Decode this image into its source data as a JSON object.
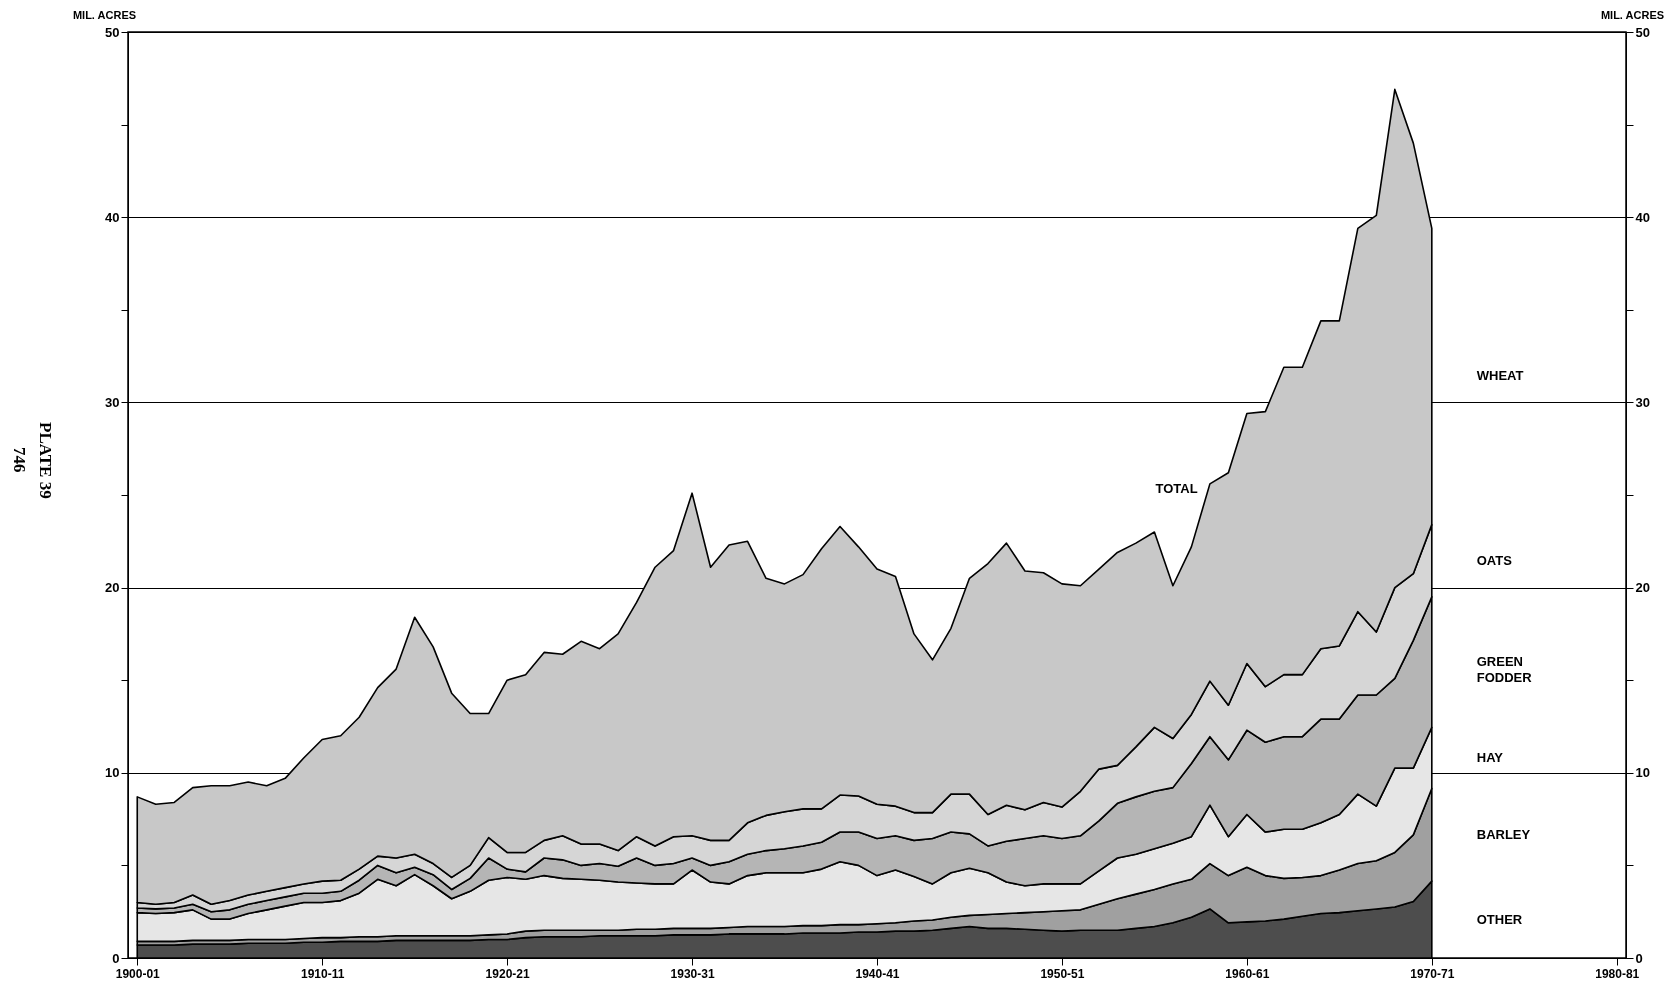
{
  "chart_data": {
    "type": "area",
    "stacked": true,
    "ylabel": "MIL. ACRES",
    "y2label": "MIL. ACRES",
    "annotations": [
      "TOTAL",
      "PLATE 39",
      "746"
    ],
    "categories": [
      "1900-01",
      null,
      null,
      null,
      null,
      null,
      null,
      null,
      null,
      null,
      "1910-11",
      null,
      null,
      null,
      null,
      null,
      null,
      null,
      null,
      null,
      "1920-21",
      null,
      null,
      null,
      null,
      null,
      null,
      null,
      null,
      null,
      "1930-31",
      null,
      null,
      null,
      null,
      null,
      null,
      null,
      null,
      null,
      "1940-41",
      null,
      null,
      null,
      null,
      null,
      null,
      null,
      null,
      null,
      "1950-51",
      null,
      null,
      null,
      null,
      null,
      null,
      null,
      null,
      null,
      "1960-61",
      null,
      null,
      null,
      null,
      null,
      null,
      null,
      null,
      null,
      "1970-71",
      null,
      null,
      null,
      null,
      null,
      null,
      null,
      null,
      null,
      "1980-81"
    ],
    "ylim": [
      0,
      50
    ],
    "yticks": [
      0,
      {
        "value": 5,
        "label": null
      },
      10,
      {
        "value": 15,
        "label": null
      },
      20,
      {
        "value": 25,
        "label": null
      },
      30,
      {
        "value": 35,
        "label": null
      },
      40,
      {
        "value": 45,
        "label": null
      },
      50
    ],
    "y2lim": [
      0,
      50
    ],
    "y2ticks": [
      0,
      {
        "value": 5,
        "label": null
      },
      10,
      {
        "value": 15,
        "label": null
      },
      20,
      {
        "value": 25,
        "label": null
      },
      30,
      {
        "value": 35,
        "label": null
      },
      40,
      {
        "value": 45,
        "label": null
      },
      50
    ],
    "grid": "y",
    "series": [
      {
        "name": "OTHER",
        "color": "#4d4d4d",
        "values": [
          0.7,
          0.7,
          0.7,
          0.75,
          0.75,
          0.75,
          0.8,
          0.8,
          0.8,
          0.85,
          0.85,
          0.9,
          0.9,
          0.9,
          0.95,
          0.95,
          0.95,
          0.95,
          0.95,
          1.0,
          1.0,
          1.1,
          1.15,
          1.15,
          1.15,
          1.2,
          1.2,
          1.2,
          1.2,
          1.25,
          1.25,
          1.25,
          1.3,
          1.3,
          1.3,
          1.3,
          1.35,
          1.35,
          1.35,
          1.4,
          1.4,
          1.45,
          1.45,
          1.5,
          1.6,
          1.7,
          1.6,
          1.6,
          1.55,
          1.5,
          1.45,
          1.5,
          1.5,
          1.5,
          1.6,
          1.7,
          1.9,
          2.2,
          2.65,
          1.9,
          1.95,
          2.0,
          2.1,
          2.25,
          2.4,
          2.45,
          2.55,
          2.65,
          2.75,
          3.05,
          4.15,
          null,
          null,
          null,
          null,
          null,
          null,
          null,
          null,
          null,
          null
        ]
      },
      {
        "name": "BARLEY",
        "color": "#a0a0a0",
        "values": [
          0.2,
          0.2,
          0.2,
          0.2,
          0.2,
          0.2,
          0.2,
          0.2,
          0.2,
          0.2,
          0.25,
          0.2,
          0.25,
          0.25,
          0.25,
          0.25,
          0.25,
          0.25,
          0.25,
          0.25,
          0.3,
          0.35,
          0.35,
          0.35,
          0.35,
          0.3,
          0.3,
          0.35,
          0.35,
          0.35,
          0.35,
          0.35,
          0.35,
          0.4,
          0.4,
          0.4,
          0.4,
          0.4,
          0.45,
          0.4,
          0.45,
          0.45,
          0.55,
          0.55,
          0.6,
          0.6,
          0.75,
          0.8,
          0.9,
          1.0,
          1.1,
          1.1,
          1.4,
          1.7,
          1.85,
          2.0,
          2.1,
          2.05,
          2.45,
          2.55,
          2.95,
          2.45,
          2.2,
          2.1,
          2.05,
          2.3,
          2.55,
          2.6,
          2.95,
          3.6,
          5.0,
          null,
          null,
          null,
          null,
          null,
          null,
          null,
          null,
          null,
          null
        ]
      },
      {
        "name": "HAY",
        "color": "#e6e6e6",
        "values": [
          1.55,
          1.5,
          1.55,
          1.65,
          1.15,
          1.15,
          1.4,
          1.6,
          1.8,
          1.95,
          1.9,
          2.0,
          2.35,
          3.1,
          2.7,
          3.3,
          2.7,
          2.0,
          2.4,
          2.95,
          3.05,
          2.8,
          2.95,
          2.8,
          2.75,
          2.7,
          2.6,
          2.5,
          2.45,
          2.4,
          3.15,
          2.5,
          2.35,
          2.75,
          2.9,
          2.9,
          2.85,
          3.05,
          3.4,
          3.2,
          2.6,
          2.85,
          2.4,
          1.95,
          2.4,
          2.55,
          2.25,
          1.7,
          1.45,
          1.5,
          1.45,
          1.4,
          1.8,
          2.2,
          2.15,
          2.2,
          2.2,
          2.3,
          3.15,
          2.1,
          2.85,
          2.35,
          2.65,
          2.6,
          2.85,
          3.0,
          3.75,
          2.95,
          4.55,
          3.6,
          3.3,
          null,
          null,
          null,
          null,
          null,
          null,
          null,
          null,
          null,
          null
        ]
      },
      {
        "name": "GREEN FODDER",
        "color": "#b5b5b5",
        "values": [
          0.25,
          0.25,
          0.25,
          0.3,
          0.4,
          0.5,
          0.5,
          0.5,
          0.5,
          0.5,
          0.5,
          0.5,
          0.7,
          0.75,
          0.7,
          0.4,
          0.6,
          0.5,
          0.7,
          1.2,
          0.45,
          0.4,
          0.95,
          1.0,
          0.75,
          0.9,
          0.85,
          1.35,
          1.0,
          1.1,
          0.65,
          0.9,
          1.2,
          1.15,
          1.2,
          1.3,
          1.45,
          1.45,
          1.6,
          1.8,
          2.0,
          1.85,
          1.95,
          2.45,
          2.2,
          1.85,
          1.45,
          2.2,
          2.55,
          2.6,
          2.45,
          2.6,
          2.7,
          2.95,
          3.1,
          3.1,
          3.0,
          3.95,
          3.7,
          4.15,
          4.55,
          4.85,
          5.0,
          5.0,
          5.6,
          5.15,
          5.35,
          6.0,
          4.85,
          6.9,
          7.05,
          null,
          null,
          null,
          null,
          null,
          null,
          null,
          null,
          null,
          null
        ]
      },
      {
        "name": "OATS",
        "color": "#d6d6d6",
        "values": [
          0.3,
          0.25,
          0.3,
          0.5,
          0.4,
          0.5,
          0.5,
          0.5,
          0.5,
          0.5,
          0.65,
          0.6,
          0.6,
          0.5,
          0.8,
          0.7,
          0.6,
          0.65,
          0.7,
          1.1,
          0.9,
          1.05,
          0.95,
          1.3,
          1.15,
          1.05,
          0.85,
          1.15,
          1.05,
          1.45,
          1.2,
          1.35,
          1.15,
          1.7,
          1.9,
          2.0,
          2.0,
          1.8,
          2.0,
          1.95,
          1.85,
          1.6,
          1.5,
          1.4,
          2.05,
          2.15,
          1.7,
          1.95,
          1.55,
          1.8,
          1.7,
          2.4,
          2.8,
          2.05,
          2.7,
          3.45,
          2.65,
          2.65,
          3.0,
          2.95,
          3.6,
          3.0,
          3.35,
          3.35,
          3.8,
          3.95,
          4.5,
          3.4,
          4.9,
          3.6,
          3.9,
          null,
          null,
          null,
          null,
          null,
          null,
          null,
          null,
          null,
          null
        ]
      },
      {
        "name": "WHEAT",
        "color": "#c8c8c8",
        "values": [
          5.7,
          5.4,
          5.4,
          5.8,
          6.4,
          6.2,
          6.1,
          5.7,
          5.9,
          6.8,
          7.65,
          7.8,
          8.2,
          9.1,
          10.2,
          12.8,
          11.7,
          9.95,
          8.2,
          6.7,
          9.3,
          9.6,
          10.15,
          9.8,
          10.95,
          10.55,
          11.7,
          12.65,
          15.05,
          15.45,
          18.5,
          14.75,
          15.95,
          15.2,
          12.8,
          12.3,
          12.65,
          14.05,
          14.5,
          13.45,
          12.7,
          12.4,
          9.65,
          8.25,
          8.95,
          11.65,
          13.55,
          14.15,
          12.9,
          12.4,
          12.05,
          11.1,
          10.8,
          11.5,
          11.0,
          10.55,
          8.25,
          9.05,
          10.65,
          12.55,
          13.5,
          14.85,
          16.6,
          16.6,
          17.7,
          17.55,
          20.7,
          22.5,
          26.9,
          23.25,
          16.0,
          null,
          null,
          null,
          null,
          null,
          null,
          null,
          null,
          null,
          null
        ]
      }
    ]
  }
}
